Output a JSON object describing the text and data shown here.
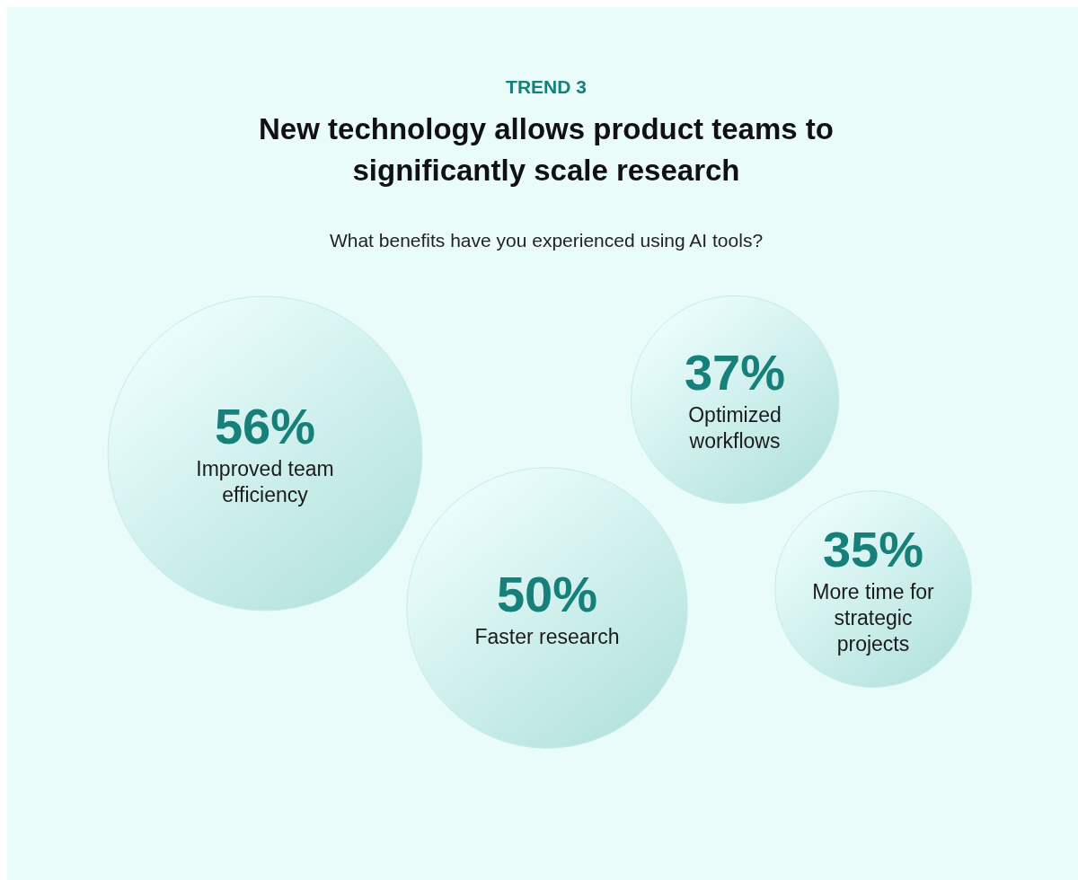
{
  "chart_data": {
    "type": "other",
    "title": "New technology allows product teams to significantly scale research",
    "subtitle": "What benefits have you experienced using AI tools?",
    "annotations": [
      "TREND 3"
    ],
    "categories": [
      "Improved team efficiency",
      "Faster research",
      "Optimized workflows",
      "More time for strategic projects"
    ],
    "values": [
      56,
      50,
      37,
      35
    ],
    "value_labels": [
      "56%",
      "50%",
      "37%",
      "35%"
    ],
    "color": "#b5e3de"
  }
}
